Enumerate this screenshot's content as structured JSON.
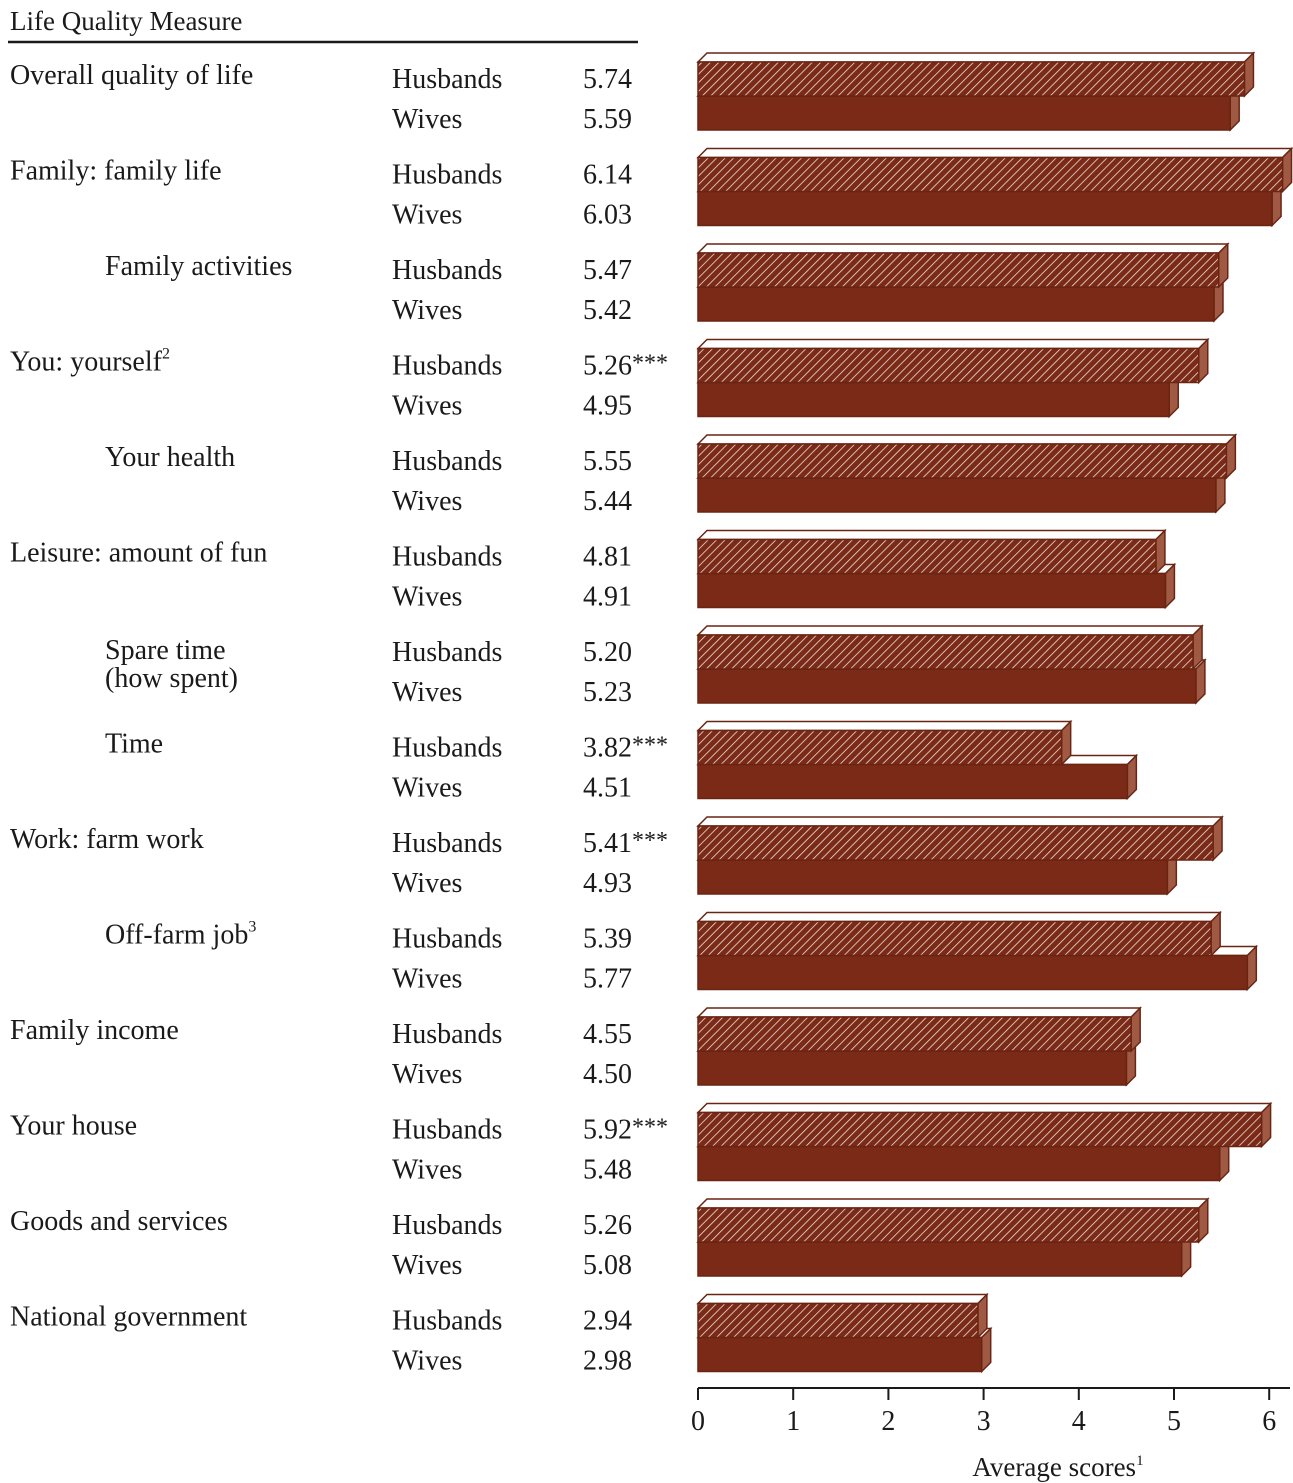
{
  "header": "Life Quality Measure",
  "chart_data": {
    "type": "bar",
    "orientation": "horizontal",
    "xlabel": "Average scores",
    "xlabel_footnote": "1",
    "xlim": [
      0,
      6
    ],
    "xticks": [
      "0",
      "1",
      "2",
      "3",
      "4",
      "5",
      "6"
    ],
    "series": [
      {
        "name": "Husbands",
        "pattern": "hatched"
      },
      {
        "name": "Wives",
        "pattern": "solid"
      }
    ],
    "colors": {
      "bar_fill": "#7a2a16",
      "bar_side": "#a05a44",
      "bar_top": "#ffffff",
      "bar_edge": "#6a2412"
    },
    "items": [
      {
        "label": "Overall quality of life",
        "footnote": "",
        "indent": false,
        "rows": [
          {
            "group": "Husbands",
            "value": 5.74,
            "value_text": "5.74",
            "sig": ""
          },
          {
            "group": "Wives",
            "value": 5.59,
            "value_text": "5.59",
            "sig": ""
          }
        ]
      },
      {
        "label": "Family: family life",
        "footnote": "",
        "indent": false,
        "rows": [
          {
            "group": "Husbands",
            "value": 6.14,
            "value_text": "6.14",
            "sig": ""
          },
          {
            "group": "Wives",
            "value": 6.03,
            "value_text": "6.03",
            "sig": ""
          }
        ]
      },
      {
        "label": "Family activities",
        "footnote": "",
        "indent": true,
        "rows": [
          {
            "group": "Husbands",
            "value": 5.47,
            "value_text": "5.47",
            "sig": ""
          },
          {
            "group": "Wives",
            "value": 5.42,
            "value_text": "5.42",
            "sig": ""
          }
        ]
      },
      {
        "label": "You: yourself",
        "footnote": "2",
        "indent": false,
        "rows": [
          {
            "group": "Husbands",
            "value": 5.26,
            "value_text": "5.26",
            "sig": "***"
          },
          {
            "group": "Wives",
            "value": 4.95,
            "value_text": "4.95",
            "sig": ""
          }
        ]
      },
      {
        "label": "Your health",
        "footnote": "",
        "indent": true,
        "rows": [
          {
            "group": "Husbands",
            "value": 5.55,
            "value_text": "5.55",
            "sig": ""
          },
          {
            "group": "Wives",
            "value": 5.44,
            "value_text": "5.44",
            "sig": ""
          }
        ]
      },
      {
        "label": "Leisure: amount of fun",
        "footnote": "",
        "indent": false,
        "rows": [
          {
            "group": "Husbands",
            "value": 4.81,
            "value_text": "4.81",
            "sig": ""
          },
          {
            "group": "Wives",
            "value": 4.91,
            "value_text": "4.91",
            "sig": ""
          }
        ]
      },
      {
        "label": "Spare time",
        "label2": "(how spent)",
        "footnote": "",
        "indent": true,
        "rows": [
          {
            "group": "Husbands",
            "value": 5.2,
            "value_text": "5.20",
            "sig": ""
          },
          {
            "group": "Wives",
            "value": 5.23,
            "value_text": "5.23",
            "sig": ""
          }
        ]
      },
      {
        "label": "Time",
        "footnote": "",
        "indent": true,
        "rows": [
          {
            "group": "Husbands",
            "value": 3.82,
            "value_text": "3.82",
            "sig": "***"
          },
          {
            "group": "Wives",
            "value": 4.51,
            "value_text": "4.51",
            "sig": ""
          }
        ]
      },
      {
        "label": "Work: farm work",
        "footnote": "",
        "indent": false,
        "rows": [
          {
            "group": "Husbands",
            "value": 5.41,
            "value_text": "5.41",
            "sig": "***"
          },
          {
            "group": "Wives",
            "value": 4.93,
            "value_text": "4.93",
            "sig": ""
          }
        ]
      },
      {
        "label": "Off-farm job",
        "footnote": "3",
        "indent": true,
        "rows": [
          {
            "group": "Husbands",
            "value": 5.39,
            "value_text": "5.39",
            "sig": ""
          },
          {
            "group": "Wives",
            "value": 5.77,
            "value_text": "5.77",
            "sig": ""
          }
        ]
      },
      {
        "label": "Family income",
        "footnote": "",
        "indent": false,
        "rows": [
          {
            "group": "Husbands",
            "value": 4.55,
            "value_text": "4.55",
            "sig": ""
          },
          {
            "group": "Wives",
            "value": 4.5,
            "value_text": "4.50",
            "sig": ""
          }
        ]
      },
      {
        "label": "Your house",
        "footnote": "",
        "indent": false,
        "rows": [
          {
            "group": "Husbands",
            "value": 5.92,
            "value_text": "5.92",
            "sig": "***"
          },
          {
            "group": "Wives",
            "value": 5.48,
            "value_text": "5.48",
            "sig": ""
          }
        ]
      },
      {
        "label": "Goods and services",
        "footnote": "",
        "indent": false,
        "rows": [
          {
            "group": "Husbands",
            "value": 5.26,
            "value_text": "5.26",
            "sig": ""
          },
          {
            "group": "Wives",
            "value": 5.08,
            "value_text": "5.08",
            "sig": ""
          }
        ]
      },
      {
        "label": "National government",
        "footnote": "",
        "indent": false,
        "rows": [
          {
            "group": "Husbands",
            "value": 2.94,
            "value_text": "2.94",
            "sig": ""
          },
          {
            "group": "Wives",
            "value": 2.98,
            "value_text": "2.98",
            "sig": ""
          }
        ]
      }
    ]
  }
}
